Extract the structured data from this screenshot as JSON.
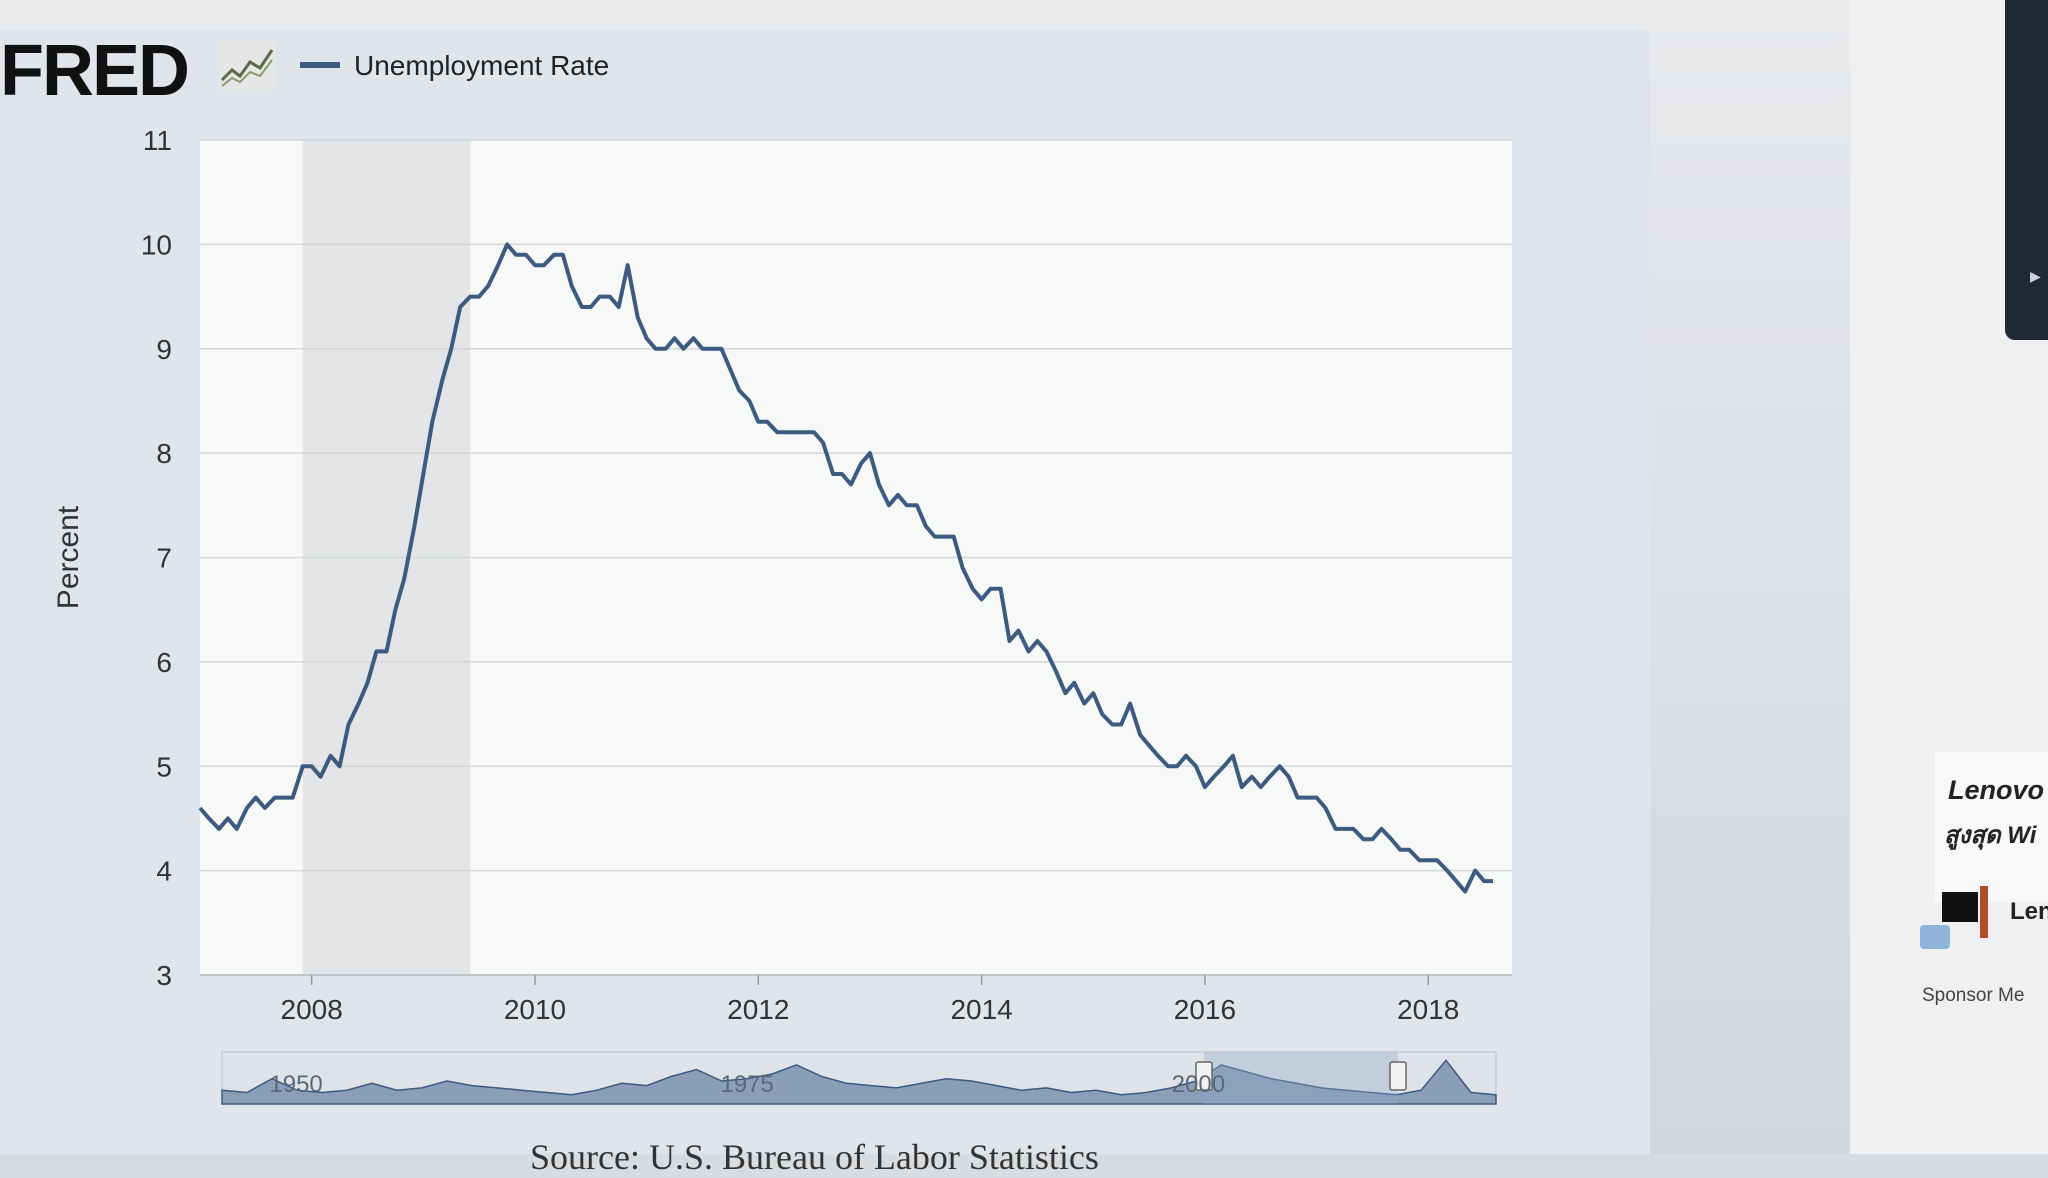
{
  "header": {
    "logo_text": "FRED",
    "logo_icon": "fred-graph-icon"
  },
  "chart_data": {
    "type": "line",
    "title": "",
    "legend": [
      "Unemployment Rate"
    ],
    "legend_position": "top-left",
    "ylabel": "Percent",
    "xlabel": "",
    "ylim": [
      3,
      11
    ],
    "xlim": [
      2007.0,
      2018.75
    ],
    "y_ticks": [
      "3",
      "4",
      "5",
      "6",
      "7",
      "8",
      "9",
      "10",
      "11"
    ],
    "x_ticks": [
      "2008",
      "2010",
      "2012",
      "2014",
      "2016",
      "2018"
    ],
    "grid": true,
    "line_color": "#3d5a80",
    "recession_shading": [
      [
        2007.92,
        2009.42
      ]
    ],
    "series": [
      {
        "name": "Unemployment Rate",
        "x": [
          2007.0,
          2007.08,
          2007.17,
          2007.25,
          2007.33,
          2007.42,
          2007.5,
          2007.58,
          2007.67,
          2007.75,
          2007.83,
          2007.92,
          2008.0,
          2008.08,
          2008.17,
          2008.25,
          2008.33,
          2008.42,
          2008.5,
          2008.58,
          2008.67,
          2008.75,
          2008.83,
          2008.92,
          2009.0,
          2009.08,
          2009.17,
          2009.25,
          2009.33,
          2009.42,
          2009.5,
          2009.58,
          2009.67,
          2009.75,
          2009.83,
          2009.92,
          2010.0,
          2010.08,
          2010.17,
          2010.25,
          2010.33,
          2010.42,
          2010.5,
          2010.58,
          2010.67,
          2010.75,
          2010.83,
          2010.92,
          2011.0,
          2011.08,
          2011.17,
          2011.25,
          2011.33,
          2011.42,
          2011.5,
          2011.58,
          2011.67,
          2011.75,
          2011.83,
          2011.92,
          2012.0,
          2012.08,
          2012.17,
          2012.25,
          2012.33,
          2012.42,
          2012.5,
          2012.58,
          2012.67,
          2012.75,
          2012.83,
          2012.92,
          2013.0,
          2013.08,
          2013.17,
          2013.25,
          2013.33,
          2013.42,
          2013.5,
          2013.58,
          2013.67,
          2013.75,
          2013.83,
          2013.92,
          2014.0,
          2014.08,
          2014.17,
          2014.25,
          2014.33,
          2014.42,
          2014.5,
          2014.58,
          2014.67,
          2014.75,
          2014.83,
          2014.92,
          2015.0,
          2015.08,
          2015.17,
          2015.25,
          2015.33,
          2015.42,
          2015.5,
          2015.58,
          2015.67,
          2015.75,
          2015.83,
          2015.92,
          2016.0,
          2016.08,
          2016.17,
          2016.25,
          2016.33,
          2016.42,
          2016.5,
          2016.58,
          2016.67,
          2016.75,
          2016.83,
          2016.92,
          2017.0,
          2017.08,
          2017.17,
          2017.25,
          2017.33,
          2017.42,
          2017.5,
          2017.58,
          2017.67,
          2017.75,
          2017.83,
          2017.92,
          2018.0,
          2018.08,
          2018.17,
          2018.25,
          2018.33,
          2018.42,
          2018.5,
          2018.58
        ],
        "values": [
          4.6,
          4.5,
          4.4,
          4.5,
          4.4,
          4.6,
          4.7,
          4.6,
          4.7,
          4.7,
          4.7,
          5.0,
          5.0,
          4.9,
          5.1,
          5.0,
          5.4,
          5.6,
          5.8,
          6.1,
          6.1,
          6.5,
          6.8,
          7.3,
          7.8,
          8.3,
          8.7,
          9.0,
          9.4,
          9.5,
          9.5,
          9.6,
          9.8,
          10.0,
          9.9,
          9.9,
          9.8,
          9.8,
          9.9,
          9.9,
          9.6,
          9.4,
          9.4,
          9.5,
          9.5,
          9.4,
          9.8,
          9.3,
          9.1,
          9.0,
          9.0,
          9.1,
          9.0,
          9.1,
          9.0,
          9.0,
          9.0,
          8.8,
          8.6,
          8.5,
          8.3,
          8.3,
          8.2,
          8.2,
          8.2,
          8.2,
          8.2,
          8.1,
          7.8,
          7.8,
          7.7,
          7.9,
          8.0,
          7.7,
          7.5,
          7.6,
          7.5,
          7.5,
          7.3,
          7.2,
          7.2,
          7.2,
          6.9,
          6.7,
          6.6,
          6.7,
          6.7,
          6.2,
          6.3,
          6.1,
          6.2,
          6.1,
          5.9,
          5.7,
          5.8,
          5.6,
          5.7,
          5.5,
          5.4,
          5.4,
          5.6,
          5.3,
          5.2,
          5.1,
          5.0,
          5.0,
          5.1,
          5.0,
          4.8,
          4.9,
          5.0,
          5.1,
          4.8,
          4.9,
          4.8,
          4.9,
          5.0,
          4.9,
          4.7,
          4.7,
          4.7,
          4.6,
          4.4,
          4.4,
          4.4,
          4.3,
          4.3,
          4.4,
          4.3,
          4.2,
          4.2,
          4.1,
          4.1,
          4.1,
          4.0,
          3.9,
          3.8,
          4.0,
          3.9,
          3.9
        ]
      }
    ],
    "navigator": {
      "labels": [
        "1950",
        "1975",
        "2000"
      ]
    }
  },
  "source_text": "Source: U.S. Bureau of Labor Statistics",
  "sidebar_ad": {
    "title": "Lenovo",
    "subtitle": "สูงสุด Wi",
    "brand": "Len",
    "sponsor": "Sponsor Me"
  }
}
